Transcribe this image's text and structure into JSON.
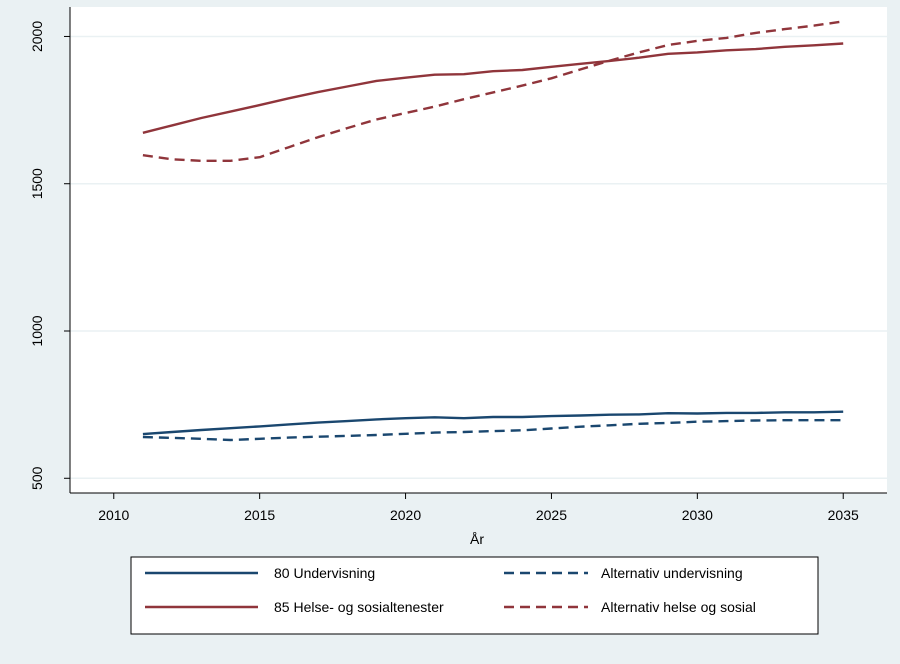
{
  "chart_data": {
    "type": "line",
    "title": "",
    "xlabel": "År",
    "ylabel": "",
    "xlim": [
      2008.5,
      2036.5
    ],
    "ylim": [
      450,
      2100
    ],
    "xticks": [
      "2010",
      "2015",
      "2020",
      "2025",
      "2030",
      "2035"
    ],
    "yticks": [
      "500",
      "1000",
      "1500",
      "2000"
    ],
    "grid": true,
    "legend_position": "bottom",
    "series": [
      {
        "name": "80 Undervisning",
        "color": "#1a476f",
        "dash": "solid",
        "x": [
          2011,
          2012,
          2013,
          2014,
          2015,
          2016,
          2017,
          2018,
          2019,
          2020,
          2021,
          2022,
          2023,
          2024,
          2025,
          2026,
          2027,
          2028,
          2029,
          2030,
          2031,
          2032,
          2033,
          2034,
          2035
        ],
        "y": [
          650,
          657,
          664,
          670,
          676,
          683,
          689,
          694,
          700,
          704,
          707,
          704,
          708,
          708,
          711,
          713,
          716,
          717,
          721,
          720,
          722,
          722,
          724,
          724,
          726
        ]
      },
      {
        "name": "Alternativ undervisning",
        "color": "#1a476f",
        "dash": "dashed",
        "x": [
          2011,
          2012,
          2013,
          2014,
          2015,
          2016,
          2017,
          2018,
          2019,
          2020,
          2021,
          2022,
          2023,
          2024,
          2025,
          2026,
          2027,
          2028,
          2029,
          2030,
          2031,
          2032,
          2033,
          2034,
          2035
        ],
        "y": [
          640,
          637,
          634,
          630,
          634,
          638,
          641,
          644,
          647,
          651,
          655,
          657,
          660,
          663,
          669,
          675,
          680,
          685,
          688,
          692,
          694,
          696,
          697,
          697,
          697
        ]
      },
      {
        "name": "85 Helse- og sosialtenester",
        "color": "#90353b",
        "dash": "solid",
        "x": [
          2011,
          2012,
          2013,
          2014,
          2015,
          2016,
          2017,
          2018,
          2019,
          2020,
          2021,
          2022,
          2023,
          2024,
          2025,
          2026,
          2027,
          2028,
          2029,
          2030,
          2031,
          2032,
          2033,
          2034,
          2035
        ],
        "y": [
          1673,
          1698,
          1723,
          1745,
          1767,
          1790,
          1811,
          1830,
          1849,
          1860,
          1870,
          1872,
          1882,
          1886,
          1897,
          1907,
          1917,
          1928,
          1941,
          1946,
          1953,
          1957,
          1965,
          1970,
          1976
        ]
      },
      {
        "name": "Alternativ helse og sosial",
        "color": "#90353b",
        "dash": "dashed",
        "x": [
          2011,
          2012,
          2013,
          2014,
          2015,
          2016,
          2017,
          2018,
          2019,
          2020,
          2021,
          2022,
          2023,
          2024,
          2025,
          2026,
          2027,
          2028,
          2029,
          2030,
          2031,
          2032,
          2033,
          2034,
          2035
        ],
        "y": [
          1597,
          1583,
          1578,
          1578,
          1590,
          1624,
          1658,
          1689,
          1718,
          1740,
          1762,
          1787,
          1810,
          1833,
          1858,
          1888,
          1918,
          1946,
          1971,
          1985,
          1995,
          2012,
          2025,
          2037,
          2051
        ]
      }
    ],
    "legend": {
      "entries": [
        {
          "label": "80 Undervisning",
          "series": 0
        },
        {
          "label": "Alternativ undervisning",
          "series": 1
        },
        {
          "label": "85 Helse- og sosialtenester",
          "series": 2
        },
        {
          "label": "Alternativ helse og sosial",
          "series": 3
        }
      ]
    }
  },
  "colors": {
    "background": "#eaf1f3",
    "plot_background": "#ffffff",
    "grid": "#eaf1f3"
  }
}
